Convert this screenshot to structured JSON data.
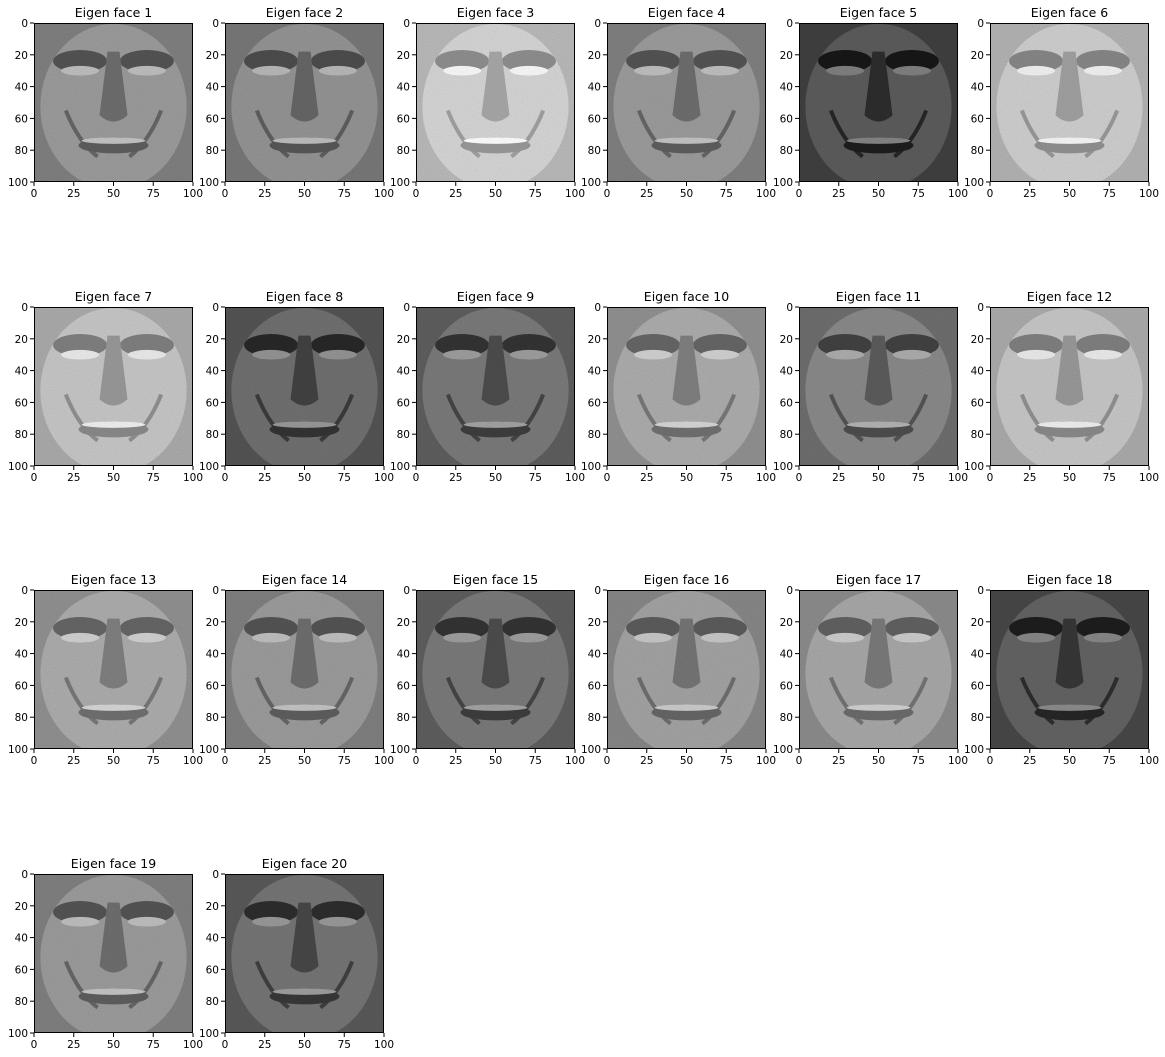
{
  "chart_data": {
    "type": "image-grid",
    "colormap": "gray",
    "columns": 6,
    "xlim": [
      0,
      100
    ],
    "ylim": [
      100,
      0
    ],
    "xticks": [
      0,
      25,
      50,
      75,
      100
    ],
    "yticks": [
      0,
      20,
      40,
      60,
      80,
      100
    ],
    "panels": [
      {
        "title": "Eigen face 1",
        "tone": 0.55
      },
      {
        "title": "Eigen face 2",
        "tone": 0.52
      },
      {
        "title": "Eigen face 3",
        "tone": 0.78
      },
      {
        "title": "Eigen face 4",
        "tone": 0.55
      },
      {
        "title": "Eigen face 5",
        "tone": 0.3
      },
      {
        "title": "Eigen face 6",
        "tone": 0.75
      },
      {
        "title": "Eigen face 7",
        "tone": 0.72
      },
      {
        "title": "Eigen face 8",
        "tone": 0.38
      },
      {
        "title": "Eigen face 9",
        "tone": 0.42
      },
      {
        "title": "Eigen face 10",
        "tone": 0.62
      },
      {
        "title": "Eigen face 11",
        "tone": 0.48
      },
      {
        "title": "Eigen face 12",
        "tone": 0.72
      },
      {
        "title": "Eigen face 13",
        "tone": 0.62
      },
      {
        "title": "Eigen face 14",
        "tone": 0.55
      },
      {
        "title": "Eigen face 15",
        "tone": 0.42
      },
      {
        "title": "Eigen face 16",
        "tone": 0.58
      },
      {
        "title": "Eigen face 17",
        "tone": 0.6
      },
      {
        "title": "Eigen face 18",
        "tone": 0.33
      },
      {
        "title": "Eigen face 19",
        "tone": 0.55
      },
      {
        "title": "Eigen face 20",
        "tone": 0.4
      }
    ]
  }
}
